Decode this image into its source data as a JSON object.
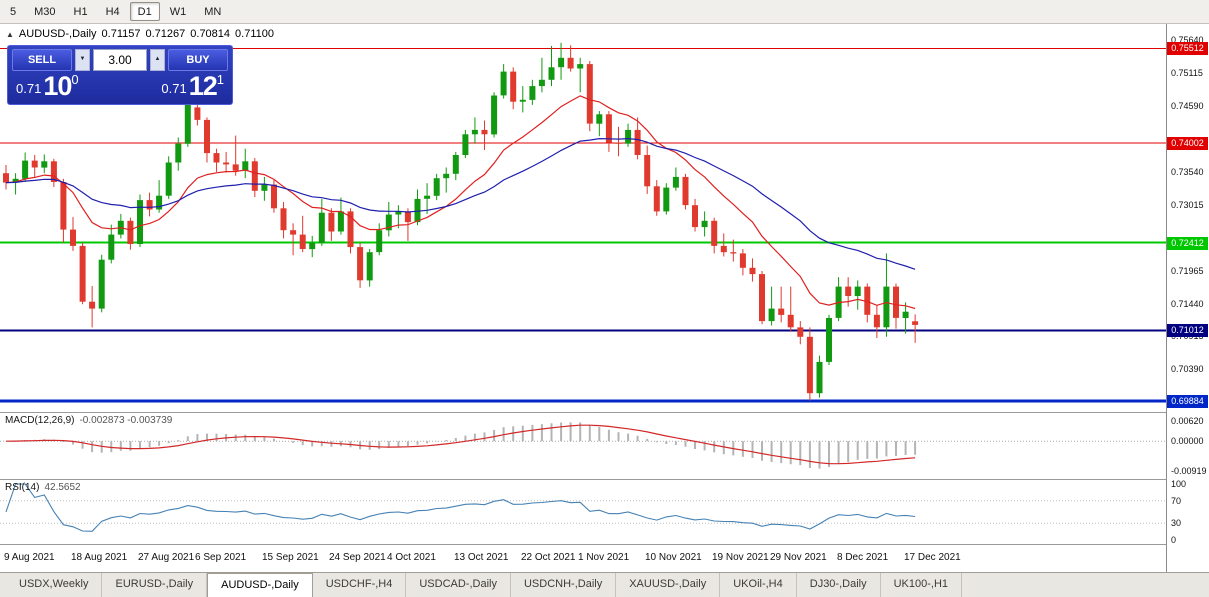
{
  "toolbar": {
    "timeframes": [
      {
        "label": "5",
        "active": false
      },
      {
        "label": "M30",
        "active": false
      },
      {
        "label": "H1",
        "active": false
      },
      {
        "label": "H4",
        "active": false
      },
      {
        "label": "D1",
        "active": true
      },
      {
        "label": "W1",
        "active": false
      },
      {
        "label": "MN",
        "active": false
      }
    ]
  },
  "chart_header": {
    "collapse_icon": "▲",
    "symbol": "AUDUSD-,Daily",
    "open": "0.71157",
    "high": "0.71267",
    "low": "0.70814",
    "close": "0.71100"
  },
  "trade_panel": {
    "sell_label": "SELL",
    "buy_label": "BUY",
    "volume": "3.00",
    "spinner_down": "▼",
    "spinner_up": "▲",
    "sell_price": {
      "prefix": "0.71",
      "big": "10",
      "sup": "0"
    },
    "buy_price": {
      "prefix": "0.71",
      "big": "12",
      "sup": "1"
    }
  },
  "indicators": {
    "macd_label": "MACD(12,26,9)",
    "macd_values": "-0.002873 -0.003739",
    "rsi_label": "RSI(14)",
    "rsi_value": "42.5652"
  },
  "tabs": {
    "active_index": 2,
    "items": [
      "USDX,Weekly",
      "EURUSD-,Daily",
      "AUDUSD-,Daily",
      "USDCHF-,H4",
      "USDCAD-,Daily",
      "USDCNH-,Daily",
      "XAUUSD-,Daily",
      "UKOil-,H4",
      "DJ30-,Daily",
      "UK100-,H1"
    ]
  },
  "chart_data": {
    "type": "candlestick",
    "symbol": "AUDUSD",
    "timeframe": "Daily",
    "price_range": {
      "top": 0.759,
      "bottom": 0.6971
    },
    "colors": {
      "bull": "#119a11",
      "bear": "#e0392e",
      "ma_fast": "#e02020",
      "ma_slow": "#1f1fae",
      "macd_hist": "#b4b4b4",
      "macd_signal": "#d22828",
      "rsi_line": "#4682b4"
    },
    "price_axis_ticks": [
      {
        "value": 0.7564,
        "text": "0.75640"
      },
      {
        "value": 0.75115,
        "text": "0.75115"
      },
      {
        "value": 0.7459,
        "text": "0.74590"
      },
      {
        "value": 0.7354,
        "text": "0.73540"
      },
      {
        "value": 0.73015,
        "text": "0.73015"
      },
      {
        "value": 0.71965,
        "text": "0.71965"
      },
      {
        "value": 0.7144,
        "text": "0.71440"
      },
      {
        "value": 0.70915,
        "text": "0.70915"
      },
      {
        "value": 0.7039,
        "text": "0.70390"
      }
    ],
    "hlines": [
      {
        "price": 0.75512,
        "label": "0.75512",
        "color": "#e00000",
        "width": 1
      },
      {
        "price": 0.74002,
        "label": "0.74002",
        "color": "#e00000",
        "width": 1
      },
      {
        "price": 0.72412,
        "label": "0.72412",
        "color": "#00c800",
        "width": 2
      },
      {
        "price": 0.71012,
        "label": "0.71012",
        "color": "#000080",
        "width": 2
      },
      {
        "price": 0.69884,
        "label": "0.69884",
        "color": "#0026c8",
        "width": 3
      }
    ],
    "x_labels": [
      {
        "text": "9 Aug 2021",
        "index": 0
      },
      {
        "text": "18 Aug 2021",
        "index": 7
      },
      {
        "text": "27 Aug 2021",
        "index": 14
      },
      {
        "text": "6 Sep 2021",
        "index": 20
      },
      {
        "text": "15 Sep 2021",
        "index": 27
      },
      {
        "text": "24 Sep 2021",
        "index": 34
      },
      {
        "text": "4 Oct 2021",
        "index": 40
      },
      {
        "text": "13 Oct 2021",
        "index": 47
      },
      {
        "text": "22 Oct 2021",
        "index": 54
      },
      {
        "text": "1 Nov 2021",
        "index": 60
      },
      {
        "text": "10 Nov 2021",
        "index": 67
      },
      {
        "text": "19 Nov 2021",
        "index": 74
      },
      {
        "text": "29 Nov 2021",
        "index": 80
      },
      {
        "text": "8 Dec 2021",
        "index": 87
      },
      {
        "text": "17 Dec 2021",
        "index": 94
      }
    ],
    "moving_averages": [
      {
        "period": 13,
        "color": "#e02020"
      },
      {
        "period": 34,
        "color": "#1f1fae"
      }
    ],
    "macd_axis": [
      {
        "value": 0.0062,
        "text": "0.00620"
      },
      {
        "value": 0.0,
        "text": "0.00000"
      },
      {
        "value": -0.00919,
        "text": "-0.00919"
      }
    ],
    "macd_range": {
      "hi": 0.0078,
      "lo": -0.0108
    },
    "rsi_axis": [
      {
        "value": 100,
        "text": "100"
      },
      {
        "value": 70,
        "text": "70"
      },
      {
        "value": 30,
        "text": "30"
      },
      {
        "value": 0,
        "text": "0"
      }
    ],
    "rsi_levels": [
      70,
      30
    ],
    "candles": [
      [
        0.7352,
        0.7365,
        0.7326,
        0.7337
      ],
      [
        0.7337,
        0.7352,
        0.7318,
        0.7343
      ],
      [
        0.7343,
        0.7385,
        0.7338,
        0.7372
      ],
      [
        0.7372,
        0.7381,
        0.7346,
        0.7361
      ],
      [
        0.7361,
        0.7382,
        0.7352,
        0.7371
      ],
      [
        0.7371,
        0.7375,
        0.733,
        0.7338
      ],
      [
        0.7338,
        0.7343,
        0.7241,
        0.7262
      ],
      [
        0.7262,
        0.7282,
        0.7228,
        0.7236
      ],
      [
        0.7236,
        0.7241,
        0.7143,
        0.7147
      ],
      [
        0.7147,
        0.7172,
        0.7106,
        0.7136
      ],
      [
        0.7136,
        0.7222,
        0.713,
        0.7214
      ],
      [
        0.7214,
        0.727,
        0.7208,
        0.7254
      ],
      [
        0.7254,
        0.7287,
        0.7248,
        0.7276
      ],
      [
        0.7276,
        0.7281,
        0.723,
        0.7239
      ],
      [
        0.7239,
        0.7318,
        0.7234,
        0.7309
      ],
      [
        0.7309,
        0.7321,
        0.7283,
        0.7294
      ],
      [
        0.7294,
        0.7341,
        0.7289,
        0.7316
      ],
      [
        0.7316,
        0.7379,
        0.7311,
        0.7369
      ],
      [
        0.7369,
        0.7409,
        0.7356,
        0.7399
      ],
      [
        0.7399,
        0.7478,
        0.7394,
        0.7461
      ],
      [
        0.7457,
        0.7471,
        0.7428,
        0.7437
      ],
      [
        0.7437,
        0.7441,
        0.7369,
        0.7384
      ],
      [
        0.7384,
        0.7391,
        0.7354,
        0.7369
      ],
      [
        0.7369,
        0.7386,
        0.7353,
        0.7366
      ],
      [
        0.7366,
        0.7412,
        0.7348,
        0.7356
      ],
      [
        0.7356,
        0.7391,
        0.7344,
        0.7371
      ],
      [
        0.7371,
        0.7376,
        0.7314,
        0.7324
      ],
      [
        0.7324,
        0.7346,
        0.7308,
        0.7334
      ],
      [
        0.7334,
        0.7341,
        0.7289,
        0.7296
      ],
      [
        0.7296,
        0.7306,
        0.7248,
        0.7261
      ],
      [
        0.7261,
        0.7272,
        0.7221,
        0.7254
      ],
      [
        0.7254,
        0.7284,
        0.7226,
        0.7231
      ],
      [
        0.7231,
        0.7252,
        0.7218,
        0.7241
      ],
      [
        0.7241,
        0.7311,
        0.7236,
        0.7289
      ],
      [
        0.7289,
        0.7296,
        0.7244,
        0.7259
      ],
      [
        0.7259,
        0.7313,
        0.7254,
        0.7291
      ],
      [
        0.7291,
        0.7296,
        0.7224,
        0.7234
      ],
      [
        0.7234,
        0.7241,
        0.7169,
        0.7181
      ],
      [
        0.7181,
        0.7231,
        0.7171,
        0.7226
      ],
      [
        0.7226,
        0.7272,
        0.7221,
        0.7261
      ],
      [
        0.7261,
        0.7306,
        0.7251,
        0.7286
      ],
      [
        0.7286,
        0.7301,
        0.7264,
        0.7291
      ],
      [
        0.7291,
        0.7296,
        0.7244,
        0.7274
      ],
      [
        0.7274,
        0.7326,
        0.7269,
        0.7311
      ],
      [
        0.7311,
        0.7336,
        0.7287,
        0.7316
      ],
      [
        0.7316,
        0.7351,
        0.7309,
        0.7344
      ],
      [
        0.7344,
        0.7361,
        0.7321,
        0.7351
      ],
      [
        0.7351,
        0.7386,
        0.7341,
        0.7381
      ],
      [
        0.7381,
        0.7421,
        0.7376,
        0.7414
      ],
      [
        0.7414,
        0.7441,
        0.7399,
        0.7421
      ],
      [
        0.7421,
        0.7436,
        0.7389,
        0.7414
      ],
      [
        0.7414,
        0.7481,
        0.7409,
        0.7476
      ],
      [
        0.7476,
        0.7526,
        0.7471,
        0.7514
      ],
      [
        0.7514,
        0.7521,
        0.7454,
        0.7466
      ],
      [
        0.7466,
        0.7491,
        0.7449,
        0.7469
      ],
      [
        0.7469,
        0.7501,
        0.7461,
        0.7491
      ],
      [
        0.7491,
        0.7536,
        0.7481,
        0.7501
      ],
      [
        0.7501,
        0.7555,
        0.7491,
        0.7521
      ],
      [
        0.7521,
        0.756,
        0.7501,
        0.7536
      ],
      [
        0.7536,
        0.7556,
        0.7514,
        0.7519
      ],
      [
        0.7519,
        0.7536,
        0.7481,
        0.7526
      ],
      [
        0.7526,
        0.7531,
        0.7419,
        0.7431
      ],
      [
        0.7431,
        0.7451,
        0.7411,
        0.7446
      ],
      [
        0.7446,
        0.7451,
        0.7386,
        0.7401
      ],
      [
        0.7401,
        0.7426,
        0.7379,
        0.7399
      ],
      [
        0.7399,
        0.7431,
        0.7394,
        0.7421
      ],
      [
        0.7421,
        0.7441,
        0.7374,
        0.7381
      ],
      [
        0.7381,
        0.7396,
        0.7319,
        0.7331
      ],
      [
        0.7331,
        0.7341,
        0.7284,
        0.7291
      ],
      [
        0.7291,
        0.7336,
        0.7286,
        0.7329
      ],
      [
        0.7329,
        0.7361,
        0.7324,
        0.7346
      ],
      [
        0.7346,
        0.7351,
        0.7294,
        0.7301
      ],
      [
        0.7301,
        0.7311,
        0.7259,
        0.7266
      ],
      [
        0.7266,
        0.7291,
        0.7251,
        0.7276
      ],
      [
        0.7276,
        0.7281,
        0.7224,
        0.7236
      ],
      [
        0.7236,
        0.7256,
        0.7219,
        0.7226
      ],
      [
        0.7226,
        0.7246,
        0.7211,
        0.7224
      ],
      [
        0.7224,
        0.7231,
        0.7189,
        0.7201
      ],
      [
        0.7201,
        0.7216,
        0.7179,
        0.7191
      ],
      [
        0.7191,
        0.7196,
        0.7111,
        0.7116
      ],
      [
        0.7116,
        0.7171,
        0.7109,
        0.7136
      ],
      [
        0.7136,
        0.7171,
        0.7114,
        0.7126
      ],
      [
        0.7126,
        0.7171,
        0.7099,
        0.7106
      ],
      [
        0.7106,
        0.7116,
        0.7079,
        0.7091
      ],
      [
        0.7091,
        0.7106,
        0.6989,
        0.7001
      ],
      [
        0.7001,
        0.7061,
        0.6994,
        0.7051
      ],
      [
        0.7051,
        0.7126,
        0.7046,
        0.7121
      ],
      [
        0.7121,
        0.7186,
        0.7116,
        0.7171
      ],
      [
        0.7171,
        0.7186,
        0.7139,
        0.7156
      ],
      [
        0.7156,
        0.7181,
        0.7134,
        0.7171
      ],
      [
        0.7171,
        0.7176,
        0.7114,
        0.7126
      ],
      [
        0.7126,
        0.7141,
        0.7089,
        0.7106
      ],
      [
        0.7106,
        0.7224,
        0.7091,
        0.7171
      ],
      [
        0.7171,
        0.7176,
        0.7104,
        0.7121
      ],
      [
        0.7121,
        0.7146,
        0.7096,
        0.7131
      ],
      [
        0.71157,
        0.71267,
        0.70814,
        0.711
      ]
    ]
  }
}
